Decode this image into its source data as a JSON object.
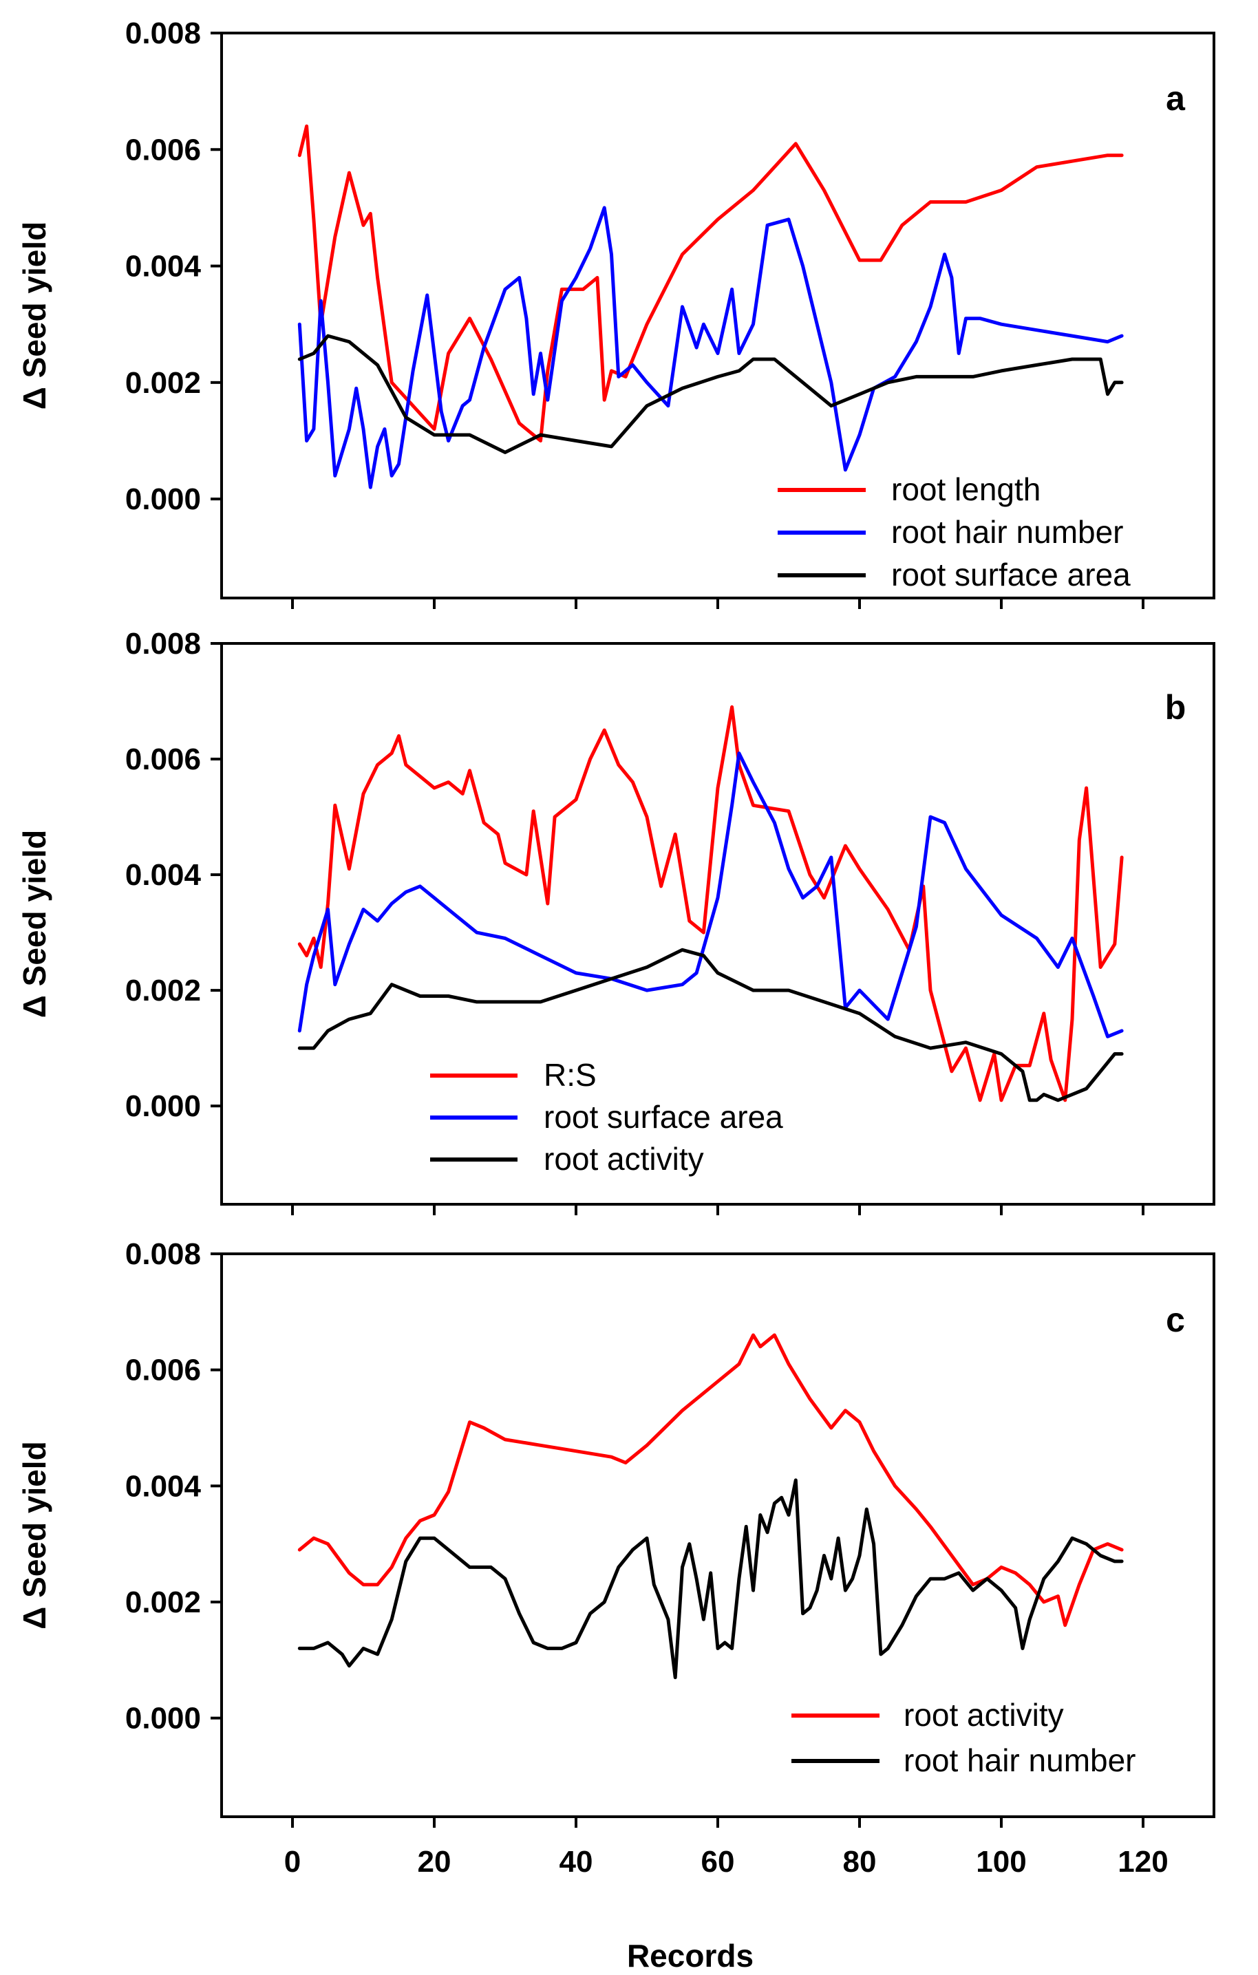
{
  "chart_data": [
    {
      "type": "line",
      "panel_letter": "a",
      "ylabel": "Δ Seed yield",
      "xlabel": "",
      "xlim": [
        -10,
        130
      ],
      "ylim": [
        -0.0017,
        0.008
      ],
      "xticks": [
        0,
        20,
        40,
        60,
        80,
        100,
        120
      ],
      "yticks": [
        0.0,
        0.002,
        0.004,
        0.006,
        0.008
      ],
      "ytick_labels": [
        "0.000",
        "0.002",
        "0.004",
        "0.006",
        "0.008"
      ],
      "legend_position": "bottom-right",
      "series": [
        {
          "name": "root length",
          "color": "#ff0000",
          "x": [
            1,
            2,
            3,
            4,
            6,
            8,
            10,
            11,
            12,
            14,
            17,
            20,
            22,
            25,
            28,
            32,
            35,
            36,
            38,
            41,
            43,
            44,
            45,
            47,
            50,
            55,
            60,
            65,
            68,
            71,
            75,
            80,
            83,
            86,
            90,
            95,
            100,
            105,
            110,
            115,
            117
          ],
          "y": [
            0.0059,
            0.0064,
            0.0048,
            0.003,
            0.0045,
            0.0056,
            0.0047,
            0.0049,
            0.0038,
            0.002,
            0.0016,
            0.0012,
            0.0025,
            0.0031,
            0.0024,
            0.0013,
            0.001,
            0.0022,
            0.0036,
            0.0036,
            0.0038,
            0.0017,
            0.0022,
            0.0021,
            0.003,
            0.0042,
            0.0048,
            0.0053,
            0.0057,
            0.0061,
            0.0053,
            0.0041,
            0.0041,
            0.0047,
            0.0051,
            0.0051,
            0.0053,
            0.0057,
            0.0058,
            0.0059,
            0.0059
          ]
        },
        {
          "name": "root hair number",
          "color": "#0000ff",
          "x": [
            1,
            2,
            3,
            4,
            5,
            6,
            8,
            9,
            10,
            11,
            12,
            13,
            14,
            15,
            17,
            19,
            20,
            21,
            22,
            24,
            25,
            27,
            30,
            32,
            33,
            34,
            35,
            36,
            38,
            40,
            42,
            44,
            45,
            46,
            48,
            50,
            53,
            55,
            57,
            58,
            60,
            62,
            63,
            65,
            67,
            70,
            72,
            74,
            76,
            78,
            80,
            82,
            85,
            88,
            90,
            92,
            93,
            94,
            95,
            97,
            100,
            105,
            110,
            115,
            117
          ],
          "y": [
            0.003,
            0.001,
            0.0012,
            0.0034,
            0.002,
            0.0004,
            0.0012,
            0.0019,
            0.0012,
            0.0002,
            0.0009,
            0.0012,
            0.0004,
            0.0006,
            0.0022,
            0.0035,
            0.0025,
            0.0015,
            0.001,
            0.0016,
            0.0017,
            0.0026,
            0.0036,
            0.0038,
            0.0031,
            0.0018,
            0.0025,
            0.0017,
            0.0034,
            0.0038,
            0.0043,
            0.005,
            0.0042,
            0.0021,
            0.0023,
            0.002,
            0.0016,
            0.0033,
            0.0026,
            0.003,
            0.0025,
            0.0036,
            0.0025,
            0.003,
            0.0047,
            0.0048,
            0.004,
            0.003,
            0.002,
            0.0005,
            0.0011,
            0.0019,
            0.0021,
            0.0027,
            0.0033,
            0.0042,
            0.0038,
            0.0025,
            0.0031,
            0.0031,
            0.003,
            0.0029,
            0.0028,
            0.0027,
            0.0028
          ]
        },
        {
          "name": "root surface area",
          "color": "#000000",
          "x": [
            1,
            3,
            5,
            8,
            12,
            16,
            20,
            25,
            30,
            35,
            40,
            45,
            50,
            55,
            60,
            63,
            65,
            68,
            70,
            72,
            76,
            80,
            84,
            88,
            92,
            96,
            100,
            105,
            110,
            114,
            115,
            116,
            117
          ],
          "y": [
            0.0024,
            0.0025,
            0.0028,
            0.0027,
            0.0023,
            0.0014,
            0.0011,
            0.0011,
            0.0008,
            0.0011,
            0.001,
            0.0009,
            0.0016,
            0.0019,
            0.0021,
            0.0022,
            0.0024,
            0.0024,
            0.0022,
            0.002,
            0.0016,
            0.0018,
            0.002,
            0.0021,
            0.0021,
            0.0021,
            0.0022,
            0.0023,
            0.0024,
            0.0024,
            0.0018,
            0.002,
            0.002
          ]
        }
      ]
    },
    {
      "type": "line",
      "panel_letter": "b",
      "ylabel": "Δ Seed yield",
      "xlabel": "",
      "xlim": [
        -10,
        130
      ],
      "ylim": [
        -0.0017,
        0.008
      ],
      "xticks": [
        0,
        20,
        40,
        60,
        80,
        100,
        120
      ],
      "yticks": [
        0.0,
        0.002,
        0.004,
        0.006,
        0.008
      ],
      "ytick_labels": [
        "0.000",
        "0.002",
        "0.004",
        "0.006",
        "0.008"
      ],
      "legend_position": "bottom-left",
      "series": [
        {
          "name": "R:S",
          "color": "#ff0000",
          "x": [
            1,
            2,
            3,
            4,
            5,
            6,
            8,
            10,
            12,
            14,
            15,
            16,
            18,
            20,
            22,
            24,
            25,
            27,
            29,
            30,
            33,
            34,
            36,
            37,
            40,
            42,
            44,
            46,
            48,
            50,
            52,
            54,
            56,
            58,
            60,
            62,
            63,
            65,
            70,
            73,
            75,
            78,
            80,
            84,
            87,
            89,
            90,
            93,
            95,
            97,
            99,
            100,
            102,
            104,
            106,
            107,
            109,
            110,
            111,
            112,
            114,
            116,
            117
          ],
          "y": [
            0.0028,
            0.0026,
            0.0029,
            0.0024,
            0.0035,
            0.0052,
            0.0041,
            0.0054,
            0.0059,
            0.0061,
            0.0064,
            0.0059,
            0.0057,
            0.0055,
            0.0056,
            0.0054,
            0.0058,
            0.0049,
            0.0047,
            0.0042,
            0.004,
            0.0051,
            0.0035,
            0.005,
            0.0053,
            0.006,
            0.0065,
            0.0059,
            0.0056,
            0.005,
            0.0038,
            0.0047,
            0.0032,
            0.003,
            0.0055,
            0.0069,
            0.0059,
            0.0052,
            0.0051,
            0.004,
            0.0036,
            0.0045,
            0.0041,
            0.0034,
            0.0027,
            0.0038,
            0.002,
            0.0006,
            0.001,
            0.0001,
            0.0009,
            0.0001,
            0.0007,
            0.0007,
            0.0016,
            0.0008,
            0.0001,
            0.0015,
            0.0046,
            0.0055,
            0.0024,
            0.0028,
            0.0043
          ]
        },
        {
          "name": "root surface area",
          "color": "#0000ff",
          "x": [
            1,
            2,
            3,
            4,
            5,
            6,
            8,
            10,
            12,
            14,
            16,
            18,
            20,
            23,
            26,
            30,
            35,
            40,
            45,
            50,
            55,
            57,
            60,
            62,
            63,
            65,
            68,
            70,
            72,
            74,
            76,
            77,
            78,
            80,
            84,
            88,
            90,
            92,
            95,
            100,
            105,
            108,
            110,
            113,
            115,
            117
          ],
          "y": [
            0.0013,
            0.0021,
            0.0026,
            0.003,
            0.0034,
            0.0021,
            0.0028,
            0.0034,
            0.0032,
            0.0035,
            0.0037,
            0.0038,
            0.0036,
            0.0033,
            0.003,
            0.0029,
            0.0026,
            0.0023,
            0.0022,
            0.002,
            0.0021,
            0.0023,
            0.0036,
            0.0052,
            0.0061,
            0.0056,
            0.0049,
            0.0041,
            0.0036,
            0.0038,
            0.0043,
            0.003,
            0.0017,
            0.002,
            0.0015,
            0.0031,
            0.005,
            0.0049,
            0.0041,
            0.0033,
            0.0029,
            0.0024,
            0.0029,
            0.0019,
            0.0012,
            0.0013
          ]
        },
        {
          "name": "root activity",
          "color": "#000000",
          "x": [
            1,
            3,
            5,
            8,
            11,
            14,
            18,
            22,
            26,
            30,
            35,
            40,
            45,
            50,
            55,
            58,
            60,
            65,
            70,
            75,
            80,
            85,
            90,
            95,
            100,
            103,
            104,
            105,
            106,
            108,
            110,
            112,
            114,
            116,
            117
          ],
          "y": [
            0.001,
            0.001,
            0.0013,
            0.0015,
            0.0016,
            0.0021,
            0.0019,
            0.0019,
            0.0018,
            0.0018,
            0.0018,
            0.002,
            0.0022,
            0.0024,
            0.0027,
            0.0026,
            0.0023,
            0.002,
            0.002,
            0.0018,
            0.0016,
            0.0012,
            0.001,
            0.0011,
            0.0009,
            0.0006,
            0.0001,
            0.0001,
            0.0002,
            0.0001,
            0.0002,
            0.0003,
            0.0006,
            0.0009,
            0.0009
          ]
        }
      ]
    },
    {
      "type": "line",
      "panel_letter": "c",
      "ylabel": "Δ Seed yield",
      "xlabel": "Records",
      "xlim": [
        -10,
        130
      ],
      "ylim": [
        -0.0017,
        0.008
      ],
      "xticks": [
        0,
        20,
        40,
        60,
        80,
        100,
        120
      ],
      "xtick_labels": [
        "0",
        "20",
        "40",
        "60",
        "80",
        "100",
        "120"
      ],
      "yticks": [
        0.0,
        0.002,
        0.004,
        0.006,
        0.008
      ],
      "ytick_labels": [
        "0.000",
        "0.002",
        "0.004",
        "0.006",
        "0.008"
      ],
      "legend_position": "bottom-right",
      "series": [
        {
          "name": "root activity",
          "color": "#ff0000",
          "x": [
            1,
            3,
            5,
            8,
            10,
            12,
            14,
            16,
            18,
            20,
            22,
            24,
            25,
            27,
            30,
            35,
            40,
            45,
            47,
            50,
            55,
            60,
            63,
            65,
            66,
            68,
            70,
            73,
            76,
            78,
            80,
            82,
            85,
            88,
            90,
            93,
            96,
            98,
            100,
            102,
            104,
            106,
            108,
            109,
            111,
            113,
            115,
            117
          ],
          "y": [
            0.0029,
            0.0031,
            0.003,
            0.0025,
            0.0023,
            0.0023,
            0.0026,
            0.0031,
            0.0034,
            0.0035,
            0.0039,
            0.0047,
            0.0051,
            0.005,
            0.0048,
            0.0047,
            0.0046,
            0.0045,
            0.0044,
            0.0047,
            0.0053,
            0.0058,
            0.0061,
            0.0066,
            0.0064,
            0.0066,
            0.0061,
            0.0055,
            0.005,
            0.0053,
            0.0051,
            0.0046,
            0.004,
            0.0036,
            0.0033,
            0.0028,
            0.0023,
            0.0024,
            0.0026,
            0.0025,
            0.0023,
            0.002,
            0.0021,
            0.0016,
            0.0023,
            0.0029,
            0.003,
            0.0029
          ]
        },
        {
          "name": "root hair number",
          "color": "#000000",
          "x": [
            1,
            3,
            5,
            7,
            8,
            10,
            12,
            14,
            16,
            18,
            20,
            22,
            25,
            28,
            30,
            32,
            34,
            36,
            38,
            40,
            42,
            44,
            46,
            48,
            50,
            51,
            52,
            53,
            54,
            55,
            56,
            57,
            58,
            59,
            60,
            61,
            62,
            63,
            64,
            65,
            66,
            67,
            68,
            69,
            70,
            71,
            72,
            73,
            74,
            75,
            76,
            77,
            78,
            79,
            80,
            81,
            82,
            83,
            84,
            85,
            86,
            88,
            90,
            92,
            94,
            96,
            98,
            100,
            102,
            103,
            104,
            106,
            108,
            110,
            112,
            114,
            116,
            117
          ],
          "y": [
            0.0012,
            0.0012,
            0.0013,
            0.0011,
            0.0009,
            0.0012,
            0.0011,
            0.0017,
            0.0027,
            0.0031,
            0.0031,
            0.0029,
            0.0026,
            0.0026,
            0.0024,
            0.0018,
            0.0013,
            0.0012,
            0.0012,
            0.0013,
            0.0018,
            0.002,
            0.0026,
            0.0029,
            0.0031,
            0.0023,
            0.002,
            0.0017,
            0.0007,
            0.0026,
            0.003,
            0.0024,
            0.0017,
            0.0025,
            0.0012,
            0.0013,
            0.0012,
            0.0024,
            0.0033,
            0.0022,
            0.0035,
            0.0032,
            0.0037,
            0.0038,
            0.0035,
            0.0041,
            0.0018,
            0.0019,
            0.0022,
            0.0028,
            0.0024,
            0.0031,
            0.0022,
            0.0024,
            0.0028,
            0.0036,
            0.003,
            0.0011,
            0.0012,
            0.0014,
            0.0016,
            0.0021,
            0.0024,
            0.0024,
            0.0025,
            0.0022,
            0.0024,
            0.0022,
            0.0019,
            0.0012,
            0.0017,
            0.0024,
            0.0027,
            0.0031,
            0.003,
            0.0028,
            0.0027,
            0.0027
          ]
        }
      ]
    }
  ]
}
